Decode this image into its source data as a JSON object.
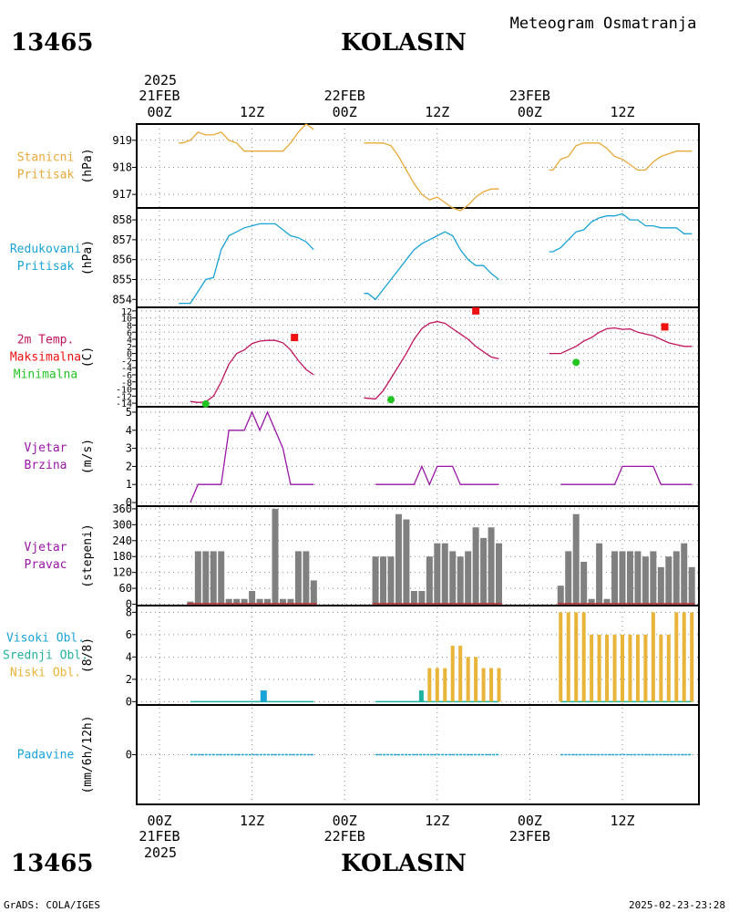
{
  "header": {
    "station_id": "13465",
    "station_name": "KOLASIN",
    "subtitle": "Meteogram Osmatranja",
    "year": "2025",
    "footer_left": "GrADS: COLA/IGES",
    "footer_right": "2025-02-23-23:28"
  },
  "x_axis": {
    "top_dates": [
      "21FEB",
      "22FEB",
      "23FEB"
    ],
    "bottom_dates": [
      "21FEB",
      "22FEB",
      "23FEB"
    ],
    "ticks": [
      "00Z",
      "12Z",
      "00Z",
      "12Z",
      "00Z",
      "12Z"
    ],
    "tick_hours": [
      0,
      12,
      24,
      36,
      48,
      60
    ]
  },
  "colors": {
    "pressure": "#e8a93a",
    "redpressure": "#1aa3d6",
    "temperature": "#c0145f",
    "max": "#ee1111",
    "min": "#22c422",
    "wind": "#9916a6",
    "winddir": "#808080",
    "high_cloud": "#1aa3d6",
    "mid_cloud": "#22b2a0",
    "low_cloud": "#e8b43a",
    "precip": "#1aa3d6"
  },
  "panels": [
    {
      "labels": [
        "Stanicni",
        "Pritisak"
      ],
      "unit": "(hPa)",
      "yticks": [
        "919",
        "918",
        "917"
      ]
    },
    {
      "labels": [
        "Redukovani",
        "Pritisak"
      ],
      "unit": "(hPa)",
      "yticks": [
        "858",
        "857",
        "856",
        "855",
        "854"
      ]
    },
    {
      "labels": [
        "2m Temp.",
        "Maksimalna",
        "Minimalna"
      ],
      "unit": "(C)",
      "yticks": [
        "12",
        "10",
        "8",
        "6",
        "4",
        "2",
        "0",
        "-2",
        "-4",
        "-6",
        "-8",
        "-10",
        "-12",
        "-14"
      ]
    },
    {
      "labels": [
        "Vjetar",
        "Brzina"
      ],
      "unit": "(m/s)",
      "yticks": [
        "5",
        "4",
        "3",
        "2",
        "1",
        "0"
      ]
    },
    {
      "labels": [
        "Vjetar",
        "Pravac"
      ],
      "unit": "(stepeni)",
      "yticks": [
        "360",
        "300",
        "240",
        "180",
        "120",
        "60",
        "0"
      ]
    },
    {
      "labels": [
        "Visoki Obl.",
        "Srednji Obl.",
        "Niski Obl."
      ],
      "unit": "(8/8)",
      "yticks": [
        "8",
        "6",
        "4",
        "2",
        "0"
      ]
    },
    {
      "labels": [
        "Padavine"
      ],
      "unit": "(mm/6h/12h)",
      "yticks": [
        "0"
      ]
    }
  ],
  "chart_data": {
    "type": "line",
    "x_unit": "hours since 2025-02-21 00Z",
    "station_pressure": [
      {
        "x": [
          2.5,
          3,
          4,
          5,
          6,
          7,
          8,
          9,
          10,
          11,
          12,
          13,
          14,
          15,
          16,
          17,
          18,
          19,
          20
        ],
        "y": [
          918.9,
          918.9,
          919.0,
          919.3,
          919.2,
          919.2,
          919.3,
          919.0,
          918.9,
          918.6,
          918.6,
          918.6,
          918.6,
          918.6,
          918.6,
          918.9,
          919.3,
          919.6,
          919.4
        ]
      },
      {
        "x": [
          26.5,
          27,
          28,
          29,
          30,
          31,
          32,
          33,
          34,
          35,
          36,
          37,
          38,
          39,
          40,
          41,
          42,
          43,
          44
        ],
        "y": [
          918.9,
          918.9,
          918.9,
          918.9,
          918.8,
          918.4,
          917.9,
          917.4,
          917.0,
          916.8,
          916.9,
          916.7,
          916.5,
          916.4,
          916.6,
          916.9,
          917.1,
          917.2,
          917.2
        ]
      },
      {
        "x": [
          50.5,
          51,
          52,
          53,
          54,
          55,
          56,
          57,
          58,
          59,
          60,
          61,
          62,
          63,
          64,
          65,
          66,
          67,
          68,
          69
        ],
        "y": [
          917.9,
          917.9,
          918.3,
          918.4,
          918.8,
          918.9,
          918.9,
          918.9,
          918.7,
          918.4,
          918.3,
          918.1,
          917.9,
          917.9,
          918.2,
          918.4,
          918.5,
          918.6,
          918.6,
          918.6
        ]
      }
    ],
    "reduced_pressure": [
      {
        "x": [
          2.5,
          3,
          4,
          5,
          6,
          7,
          8,
          9,
          10,
          11,
          12,
          13,
          14,
          15,
          16,
          17,
          18,
          19,
          20
        ],
        "y": [
          853.8,
          853.8,
          853.8,
          854.4,
          855.0,
          855.1,
          856.5,
          857.2,
          857.4,
          857.6,
          857.7,
          857.8,
          857.8,
          857.8,
          857.5,
          857.2,
          857.1,
          856.9,
          856.5
        ]
      },
      {
        "x": [
          26.5,
          27,
          28,
          29,
          30,
          31,
          32,
          33,
          34,
          35,
          36,
          37,
          38,
          39,
          40,
          41,
          42,
          43,
          44
        ],
        "y": [
          854.3,
          854.3,
          854.0,
          854.5,
          855.0,
          855.5,
          856.0,
          856.5,
          856.8,
          857.0,
          857.2,
          857.4,
          857.2,
          856.5,
          856.0,
          855.7,
          855.7,
          855.3,
          855.0
        ]
      },
      {
        "x": [
          50.5,
          51,
          52,
          53,
          54,
          55,
          56,
          57,
          58,
          59,
          60,
          61,
          62,
          63,
          64,
          65,
          66,
          67,
          68,
          69
        ],
        "y": [
          856.4,
          856.4,
          856.6,
          857.0,
          857.4,
          857.5,
          857.9,
          858.1,
          858.2,
          858.2,
          858.3,
          858.0,
          858.0,
          857.7,
          857.7,
          857.6,
          857.6,
          857.6,
          857.3,
          857.3
        ]
      }
    ],
    "temperature_2m": [
      {
        "x": [
          4,
          5,
          6,
          7,
          8,
          9,
          10,
          11,
          12,
          13,
          14,
          15,
          16,
          17,
          18,
          19,
          20
        ],
        "y": [
          -13.5,
          -13.8,
          -13.6,
          -12.0,
          -8.0,
          -3.0,
          0.0,
          1.0,
          2.8,
          3.5,
          3.7,
          3.7,
          3.0,
          1.0,
          -2.0,
          -4.5,
          -6.0
        ]
      },
      {
        "x": [
          26.5,
          27,
          28,
          29,
          30,
          31,
          32,
          33,
          34,
          35,
          36,
          37,
          38,
          39,
          40,
          41,
          42,
          43,
          44
        ],
        "y": [
          -12.5,
          -12.6,
          -12.8,
          -10.5,
          -7.0,
          -3.5,
          0.0,
          4.0,
          7.0,
          8.5,
          9.0,
          8.5,
          7.0,
          5.5,
          4.0,
          2.0,
          0.5,
          -1.0,
          -1.5
        ]
      },
      {
        "x": [
          50.5,
          51,
          52,
          53,
          54,
          55,
          56,
          57,
          58,
          59,
          60,
          61,
          62,
          63,
          64,
          65,
          66,
          67,
          68,
          69
        ],
        "y": [
          0.0,
          0.0,
          0.0,
          1.0,
          2.0,
          3.5,
          4.5,
          6.0,
          7.0,
          7.2,
          6.8,
          6.9,
          6.0,
          5.5,
          5.0,
          4.0,
          3.0,
          2.5,
          2.0,
          2.0
        ]
      }
    ],
    "max_temperature": [
      {
        "x": 17.5,
        "y": 4.5
      },
      {
        "x": 41,
        "y": 12.0
      },
      {
        "x": 65.5,
        "y": 7.5
      }
    ],
    "min_temperature": [
      {
        "x": 6,
        "y": -14.2
      },
      {
        "x": 30,
        "y": -13.0
      },
      {
        "x": 54,
        "y": -2.5
      }
    ],
    "wind_speed": [
      {
        "x": [
          4,
          5,
          6,
          7,
          8,
          9,
          10,
          11,
          12,
          13,
          14,
          15,
          16,
          17,
          18,
          19,
          20
        ],
        "y": [
          0,
          1,
          1,
          1,
          1,
          4,
          4,
          4,
          5,
          4,
          5,
          4,
          3,
          1,
          1,
          1,
          1
        ]
      },
      {
        "x": [
          28,
          29,
          30,
          31,
          32,
          33,
          34,
          35,
          36,
          37,
          38,
          39,
          40,
          41,
          42,
          43,
          44
        ],
        "y": [
          1,
          1,
          1,
          1,
          1,
          1,
          2,
          1,
          2,
          2,
          2,
          1,
          1,
          1,
          1,
          1,
          1
        ]
      },
      {
        "x": [
          52,
          53,
          54,
          55,
          56,
          57,
          58,
          59,
          60,
          61,
          62,
          63,
          64,
          65,
          66,
          67,
          68,
          69
        ],
        "y": [
          1,
          1,
          1,
          1,
          1,
          1,
          1,
          1,
          2,
          2,
          2,
          2,
          2,
          1,
          1,
          1,
          1,
          1
        ]
      }
    ],
    "wind_direction": [
      {
        "x": [
          4,
          5,
          6,
          7,
          8,
          9,
          10,
          11,
          12,
          13,
          14,
          15,
          16,
          17,
          18,
          19,
          20
        ],
        "y": [
          10,
          200,
          200,
          200,
          200,
          20,
          20,
          20,
          50,
          20,
          20,
          360,
          20,
          20,
          200,
          200,
          90
        ]
      },
      {
        "x": [
          28,
          29,
          30,
          31,
          32,
          33,
          34,
          35,
          36,
          37,
          38,
          39,
          40,
          41,
          42,
          43,
          44
        ],
        "y": [
          180,
          180,
          180,
          340,
          320,
          50,
          50,
          180,
          230,
          230,
          200,
          180,
          200,
          290,
          250,
          290,
          230
        ]
      },
      {
        "x": [
          52,
          53,
          54,
          55,
          56,
          57,
          58,
          59,
          60,
          61,
          62,
          63,
          64,
          65,
          66,
          67,
          68,
          69
        ],
        "y": [
          70,
          200,
          340,
          160,
          20,
          230,
          20,
          200,
          200,
          200,
          200,
          180,
          200,
          140,
          180,
          200,
          230,
          140
        ]
      }
    ],
    "high_cloud": [
      {
        "x": 13.5,
        "y": 1
      }
    ],
    "mid_cloud": [
      {
        "x": 34,
        "y": 1
      }
    ],
    "low_cloud": [
      {
        "x": [
          35,
          36,
          37,
          38,
          39,
          40,
          41,
          42,
          43,
          44
        ],
        "y": [
          3,
          3,
          3,
          5,
          5,
          4,
          4,
          3,
          3,
          3
        ]
      },
      {
        "x": [
          52,
          53,
          54,
          55,
          56,
          57,
          58,
          59,
          60,
          61,
          62,
          63,
          64,
          65,
          66,
          67,
          68,
          69
        ],
        "y": [
          8,
          8,
          8,
          8,
          6,
          6,
          6,
          6,
          6,
          6,
          6,
          6,
          8,
          6,
          6,
          8,
          8,
          8
        ]
      }
    ],
    "precipitation": [
      {
        "x": [
          4,
          20
        ],
        "y": [
          0,
          0
        ]
      },
      {
        "x": [
          28,
          44
        ],
        "y": [
          0,
          0
        ]
      },
      {
        "x": [
          52,
          69
        ],
        "y": [
          0,
          0
        ]
      }
    ]
  }
}
